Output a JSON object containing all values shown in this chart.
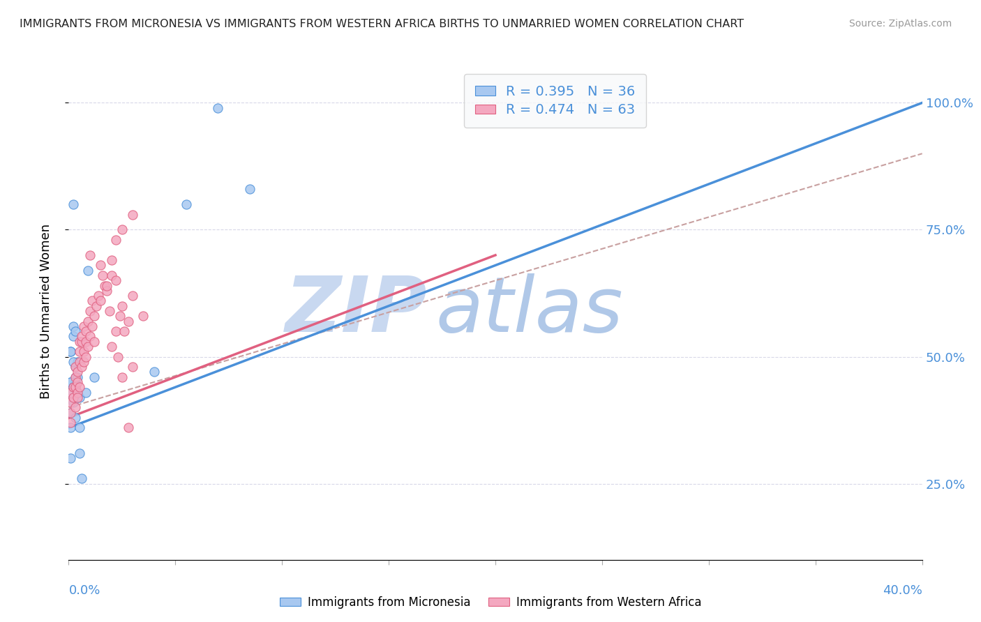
{
  "title": "IMMIGRANTS FROM MICRONESIA VS IMMIGRANTS FROM WESTERN AFRICA BIRTHS TO UNMARRIED WOMEN CORRELATION CHART",
  "source": "Source: ZipAtlas.com",
  "ylabel": "Births to Unmarried Women",
  "y_ticks": [
    0.25,
    0.5,
    0.75,
    1.0
  ],
  "y_tick_labels": [
    "25.0%",
    "50.0%",
    "75.0%",
    "100.0%"
  ],
  "xlim": [
    0.0,
    0.4
  ],
  "ylim": [
    0.1,
    1.08
  ],
  "r_micronesia": 0.395,
  "n_micronesia": 36,
  "r_western_africa": 0.474,
  "n_western_africa": 63,
  "color_micronesia": "#a8c8f0",
  "color_western_africa": "#f4a8c0",
  "color_line_micronesia": "#4a90d9",
  "color_line_western_africa": "#e06080",
  "color_dashed": "#c8a0a0",
  "watermark_zip": "ZIP",
  "watermark_atlas": "atlas",
  "watermark_color_zip": "#c8d8f0",
  "watermark_color_atlas": "#b0c8e8",
  "legend_box_color": "#f8f9fa",
  "axis_label_color": "#4a90d9",
  "micronesia_points_x": [
    0.005,
    0.002,
    0.009,
    0.003,
    0.001,
    0.001,
    0.002,
    0.001,
    0.003,
    0.002,
    0.001,
    0.004,
    0.003,
    0.003,
    0.001,
    0.002,
    0.004,
    0.002,
    0.003,
    0.001,
    0.002,
    0.001,
    0.002,
    0.001,
    0.003,
    0.002,
    0.004,
    0.008,
    0.012,
    0.005,
    0.005,
    0.006,
    0.04,
    0.055,
    0.07,
    0.085
  ],
  "micronesia_points_y": [
    0.42,
    0.8,
    0.67,
    0.44,
    0.43,
    0.36,
    0.41,
    0.39,
    0.38,
    0.42,
    0.45,
    0.43,
    0.48,
    0.46,
    0.51,
    0.56,
    0.49,
    0.44,
    0.45,
    0.45,
    0.49,
    0.51,
    0.54,
    0.3,
    0.55,
    0.44,
    0.46,
    0.43,
    0.46,
    0.36,
    0.31,
    0.26,
    0.47,
    0.8,
    0.99,
    0.83
  ],
  "western_africa_points_x": [
    0.001,
    0.001,
    0.001,
    0.001,
    0.002,
    0.002,
    0.003,
    0.003,
    0.003,
    0.003,
    0.004,
    0.004,
    0.004,
    0.004,
    0.005,
    0.005,
    0.005,
    0.005,
    0.006,
    0.006,
    0.006,
    0.007,
    0.007,
    0.007,
    0.008,
    0.008,
    0.008,
    0.009,
    0.009,
    0.01,
    0.01,
    0.011,
    0.011,
    0.012,
    0.012,
    0.013,
    0.014,
    0.015,
    0.016,
    0.017,
    0.018,
    0.019,
    0.02,
    0.02,
    0.022,
    0.023,
    0.024,
    0.025,
    0.026,
    0.028,
    0.03,
    0.035,
    0.025,
    0.03,
    0.022,
    0.02,
    0.018,
    0.01,
    0.015,
    0.022,
    0.025,
    0.03,
    0.028
  ],
  "western_africa_points_y": [
    0.41,
    0.39,
    0.43,
    0.37,
    0.44,
    0.42,
    0.46,
    0.44,
    0.48,
    0.4,
    0.43,
    0.47,
    0.45,
    0.42,
    0.51,
    0.49,
    0.44,
    0.53,
    0.53,
    0.48,
    0.54,
    0.56,
    0.51,
    0.49,
    0.55,
    0.53,
    0.5,
    0.57,
    0.52,
    0.54,
    0.59,
    0.56,
    0.61,
    0.58,
    0.53,
    0.6,
    0.62,
    0.61,
    0.66,
    0.64,
    0.63,
    0.59,
    0.66,
    0.52,
    0.55,
    0.5,
    0.58,
    0.6,
    0.55,
    0.57,
    0.62,
    0.58,
    0.46,
    0.48,
    0.65,
    0.69,
    0.64,
    0.7,
    0.68,
    0.73,
    0.75,
    0.78,
    0.36
  ],
  "micronesia_trend_x": [
    0.0,
    0.4
  ],
  "micronesia_trend_y": [
    0.36,
    1.0
  ],
  "western_africa_trend_x": [
    0.0,
    0.2
  ],
  "western_africa_trend_y": [
    0.38,
    0.7
  ],
  "dashed_trend_x": [
    0.0,
    0.4
  ],
  "dashed_trend_y": [
    0.4,
    0.9
  ],
  "grid_color": "#d8d8e8",
  "grid_style": "--"
}
